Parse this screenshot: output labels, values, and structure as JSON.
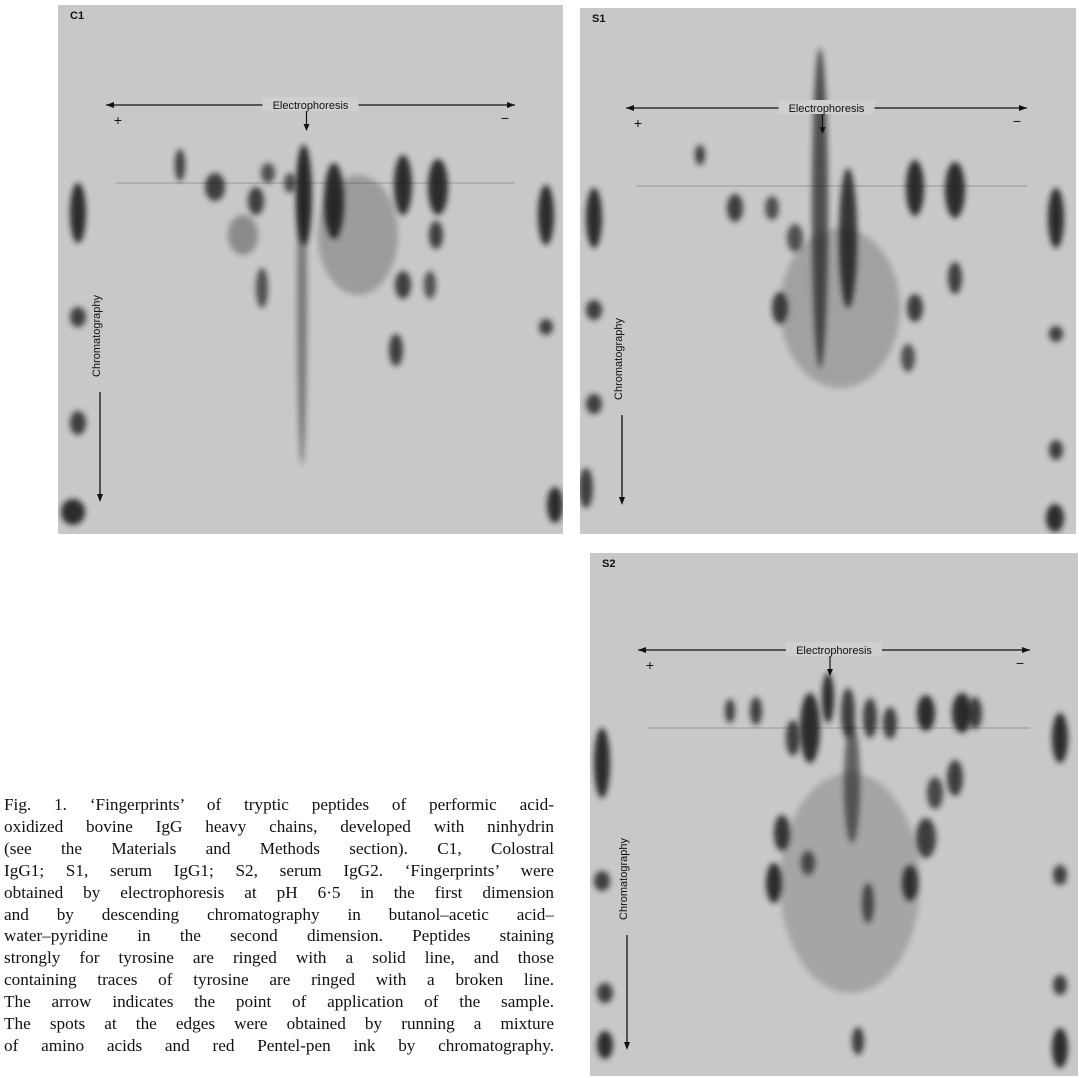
{
  "figure": {
    "panels": [
      {
        "label": "C1",
        "electrophoresis": "Electrophoresis",
        "plus": "+",
        "minus": "−",
        "chromatography": "Chromatography"
      },
      {
        "label": "S1",
        "electrophoresis": "Electrophoresis",
        "plus": "+",
        "minus": "−",
        "chromatography": "Chromatography"
      },
      {
        "label": "S2",
        "electrophoresis": "Electrophoresis",
        "plus": "+",
        "minus": "−",
        "chromatography": "Chromatography"
      }
    ]
  },
  "caption": {
    "lines": [
      "Fig. 1. ‘Fingerprints’ of tryptic peptides of performic acid-",
      "oxidized bovine IgG heavy chains, developed with ninhydrin",
      "(see the Materials and Methods section). C1, Colostral",
      "IgG1; S1, serum IgG1; S2, serum IgG2. ‘Fingerprints’ were",
      "obtained by electrophoresis at pH 6·5 in the first dimension",
      "and by descending chromatography in butanol–acetic acid–",
      "water–pyridine in the second dimension. Peptides staining",
      "strongly for tyrosine are ringed with a solid line, and those",
      "containing traces of tyrosine are ringed with a broken line.",
      "The arrow indicates the point of application of the sample.",
      "The spots at the edges were obtained by running a mixture",
      "of amino acids and red Pentel-pen ink by chromatography."
    ]
  }
}
